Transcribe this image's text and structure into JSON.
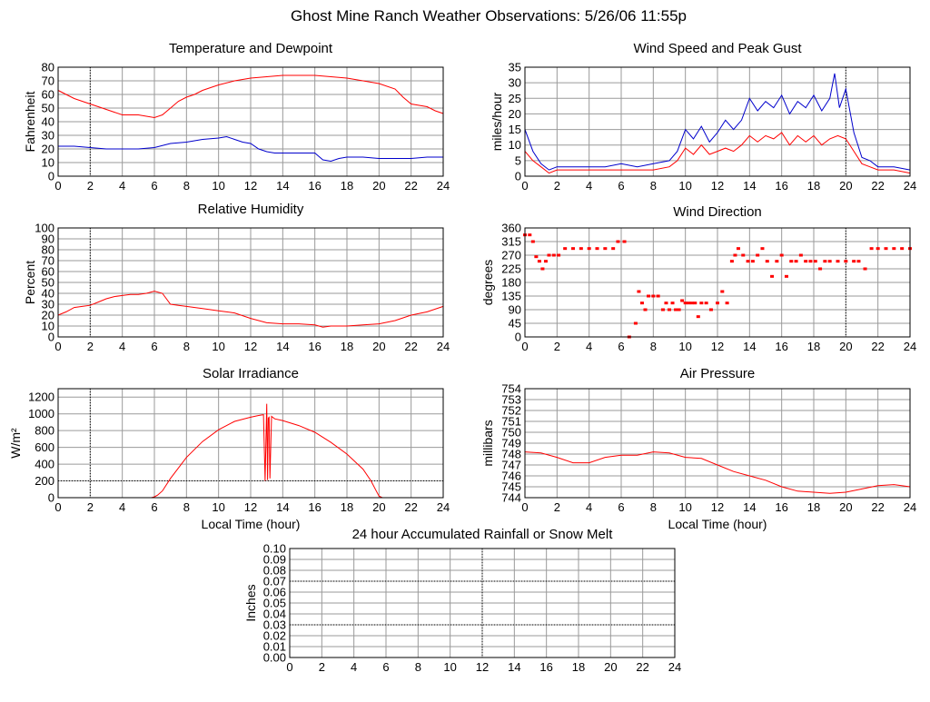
{
  "page": {
    "title": "Ghost Mine Ranch Weather Observations: 5/26/06 11:55p"
  },
  "colors": {
    "grid": "#9a9a9a",
    "dotted_grid": "#000000",
    "frame": "#000000",
    "red": "#ff0000",
    "blue": "#0000cc"
  },
  "chart_data": [
    {
      "id": "temp",
      "type": "line",
      "title": "Temperature and Dewpoint",
      "ylabel": "Fahrenheit",
      "xlabel": "",
      "xlim": [
        0,
        24
      ],
      "ylim": [
        0,
        80
      ],
      "xticks": [
        0,
        2,
        4,
        6,
        8,
        10,
        12,
        14,
        16,
        18,
        20,
        22,
        24
      ],
      "yticks": [
        0,
        10,
        20,
        30,
        40,
        50,
        60,
        70,
        80
      ],
      "dotted_x": [
        2
      ],
      "dotted_y": [],
      "series": [
        {
          "color": "#ff0000",
          "x": [
            0,
            0.5,
            1,
            1.5,
            2,
            2.5,
            3,
            3.5,
            4,
            4.5,
            5,
            5.5,
            6,
            6.5,
            7,
            7.5,
            8,
            8.5,
            9,
            9.5,
            10,
            11,
            12,
            13,
            14,
            15,
            16,
            17,
            18,
            19,
            20,
            21,
            21.5,
            22,
            22.5,
            23,
            23.5,
            24
          ],
          "y": [
            63,
            60,
            57,
            55,
            53,
            51,
            49,
            47,
            45,
            45,
            45,
            44,
            43,
            45,
            50,
            55,
            58,
            60,
            63,
            65,
            67,
            70,
            72,
            73,
            74,
            74,
            74,
            73,
            72,
            70,
            68,
            64,
            58,
            53,
            52,
            51,
            48,
            46
          ]
        },
        {
          "color": "#0000cc",
          "x": [
            0,
            1,
            2,
            3,
            4,
            5,
            6,
            7,
            8,
            9,
            10,
            10.5,
            11,
            11.5,
            12,
            12.5,
            13,
            13.5,
            14,
            15,
            16,
            16.5,
            17,
            17.5,
            18,
            19,
            20,
            21,
            22,
            23,
            24
          ],
          "y": [
            22,
            22,
            21,
            20,
            20,
            20,
            21,
            24,
            25,
            27,
            28,
            29,
            27,
            25,
            24,
            20,
            18,
            17,
            17,
            17,
            17,
            12,
            11,
            13,
            14,
            14,
            13,
            13,
            13,
            14,
            14
          ]
        }
      ]
    },
    {
      "id": "wind",
      "type": "line",
      "title": "Wind Speed and Peak Gust",
      "ylabel": "miles/hour",
      "xlabel": "",
      "xlim": [
        0,
        24
      ],
      "ylim": [
        0,
        35
      ],
      "xticks": [
        0,
        2,
        4,
        6,
        8,
        10,
        12,
        14,
        16,
        18,
        20,
        22,
        24
      ],
      "yticks": [
        0,
        5,
        10,
        15,
        20,
        25,
        30,
        35
      ],
      "dotted_x": [
        20
      ],
      "dotted_y": [],
      "series": [
        {
          "color": "#0000cc",
          "x": [
            0,
            0.5,
            1,
            1.5,
            2,
            3,
            4,
            5,
            6,
            7,
            8,
            9,
            9.5,
            10,
            10.5,
            11,
            11.5,
            12,
            12.5,
            13,
            13.5,
            14,
            14.5,
            15,
            15.5,
            16,
            16.5,
            17,
            17.5,
            18,
            18.5,
            19,
            19.3,
            19.6,
            20,
            20.5,
            21,
            21.5,
            22,
            23,
            24
          ],
          "y": [
            15,
            8,
            4,
            2,
            3,
            3,
            3,
            3,
            4,
            3,
            4,
            5,
            8,
            15,
            12,
            16,
            11,
            14,
            18,
            15,
            18,
            25,
            21,
            24,
            22,
            26,
            20,
            24,
            22,
            26,
            21,
            25,
            33,
            22,
            28,
            14,
            6,
            5,
            3,
            3,
            2
          ]
        },
        {
          "color": "#ff0000",
          "x": [
            0,
            0.5,
            1,
            1.5,
            2,
            3,
            4,
            5,
            6,
            7,
            8,
            9,
            9.5,
            10,
            10.5,
            11,
            11.5,
            12,
            12.5,
            13,
            13.5,
            14,
            14.5,
            15,
            15.5,
            16,
            16.5,
            17,
            17.5,
            18,
            18.5,
            19,
            19.5,
            20,
            20.5,
            21,
            21.5,
            22,
            23,
            24
          ],
          "y": [
            8,
            5,
            3,
            1,
            2,
            2,
            2,
            2,
            2,
            2,
            2,
            3,
            5,
            9,
            7,
            10,
            7,
            8,
            9,
            8,
            10,
            13,
            11,
            13,
            12,
            14,
            10,
            13,
            11,
            13,
            10,
            12,
            13,
            12,
            8,
            4,
            3,
            2,
            2,
            1
          ]
        }
      ]
    },
    {
      "id": "humidity",
      "type": "line",
      "title": "Relative Humidity",
      "ylabel": "Percent",
      "xlabel": "",
      "xlim": [
        0,
        24
      ],
      "ylim": [
        0,
        100
      ],
      "xticks": [
        0,
        2,
        4,
        6,
        8,
        10,
        12,
        14,
        16,
        18,
        20,
        22,
        24
      ],
      "yticks": [
        0,
        10,
        20,
        30,
        40,
        50,
        60,
        70,
        80,
        90,
        100
      ],
      "dotted_x": [
        2
      ],
      "dotted_y": [],
      "series": [
        {
          "color": "#ff0000",
          "x": [
            0,
            0.5,
            1,
            1.5,
            2,
            2.5,
            3,
            3.5,
            4,
            4.5,
            5,
            5.5,
            6,
            6.5,
            7,
            7.5,
            8,
            9,
            10,
            11,
            12,
            13,
            14,
            15,
            16,
            16.5,
            17,
            18,
            19,
            20,
            21,
            22,
            23,
            24
          ],
          "y": [
            20,
            23,
            27,
            28,
            29,
            32,
            35,
            37,
            38,
            39,
            39,
            40,
            42,
            40,
            30,
            29,
            28,
            26,
            24,
            22,
            17,
            13,
            12,
            12,
            11,
            9,
            10,
            10,
            11,
            12,
            15,
            20,
            23,
            28
          ]
        }
      ]
    },
    {
      "id": "direction",
      "type": "scatter",
      "title": "Wind Direction",
      "ylabel": "degrees",
      "xlabel": "",
      "xlim": [
        0,
        24
      ],
      "ylim": [
        0,
        360
      ],
      "xticks": [
        0,
        2,
        4,
        6,
        8,
        10,
        12,
        14,
        16,
        18,
        20,
        22,
        24
      ],
      "yticks": [
        0,
        45,
        90,
        135,
        180,
        225,
        270,
        315,
        360
      ],
      "dotted_x": [
        20
      ],
      "dotted_y": [],
      "series": [
        {
          "color": "#ff0000",
          "x": [
            0,
            0.3,
            0.5,
            0.7,
            0.9,
            1.1,
            1.3,
            1.5,
            1.8,
            2.1,
            2.5,
            3,
            3.5,
            4,
            4.5,
            5,
            5.5,
            5.8,
            6.2,
            6.5,
            6.9,
            7.1,
            7.3,
            7.5,
            7.7,
            8,
            8.3,
            8.6,
            8.8,
            9,
            9.2,
            9.4,
            9.6,
            9.8,
            10,
            10.2,
            10.4,
            10.6,
            10.8,
            11,
            11.3,
            11.6,
            12,
            12.3,
            12.6,
            12.9,
            13.1,
            13.3,
            13.6,
            13.9,
            14.2,
            14.5,
            14.8,
            15.1,
            15.4,
            15.7,
            16,
            16.3,
            16.6,
            16.9,
            17.2,
            17.5,
            17.8,
            18.1,
            18.4,
            18.7,
            19,
            19.5,
            20,
            20.5,
            20.8,
            21.2,
            21.6,
            22,
            22.5,
            23,
            23.5,
            24
          ],
          "y": [
            337,
            337,
            315,
            265,
            250,
            225,
            250,
            270,
            270,
            270,
            292,
            292,
            292,
            292,
            292,
            292,
            292,
            315,
            315,
            0,
            45,
            150,
            112,
            90,
            135,
            135,
            135,
            90,
            112,
            90,
            112,
            90,
            90,
            120,
            112,
            112,
            112,
            112,
            67,
            112,
            112,
            90,
            112,
            150,
            112,
            250,
            270,
            292,
            270,
            250,
            250,
            270,
            292,
            250,
            200,
            250,
            270,
            200,
            250,
            250,
            270,
            250,
            250,
            250,
            225,
            250,
            250,
            250,
            250,
            250,
            250,
            225,
            292,
            292,
            292,
            292,
            292,
            292
          ]
        }
      ]
    },
    {
      "id": "solar",
      "type": "line",
      "title": "Solar Irradiance",
      "ylabel": "W/m²",
      "xlabel": "Local Time (hour)",
      "xlim": [
        0,
        24
      ],
      "ylim": [
        0,
        1300
      ],
      "xticks": [
        0,
        2,
        4,
        6,
        8,
        10,
        12,
        14,
        16,
        18,
        20,
        22,
        24
      ],
      "yticks": [
        0,
        200,
        400,
        600,
        800,
        1000,
        1200
      ],
      "dotted_x": [
        2
      ],
      "dotted_y": [
        200
      ],
      "series": [
        {
          "color": "#ff0000",
          "x": [
            0,
            5,
            5.8,
            6,
            6.2,
            6.5,
            7,
            8,
            9,
            10,
            11,
            12,
            12.5,
            12.8,
            12.9,
            13.0,
            13.05,
            13.1,
            13.15,
            13.2,
            13.3,
            13.5,
            14,
            15,
            16,
            17,
            18,
            19,
            19.5,
            19.8,
            20,
            20.2,
            21,
            24
          ],
          "y": [
            0,
            0,
            0,
            10,
            30,
            80,
            230,
            480,
            670,
            810,
            910,
            960,
            980,
            990,
            200,
            1120,
            210,
            950,
            960,
            230,
            970,
            940,
            920,
            860,
            780,
            660,
            520,
            340,
            200,
            90,
            20,
            0,
            0,
            0
          ]
        }
      ]
    },
    {
      "id": "pressure",
      "type": "line",
      "title": "Air Pressure",
      "ylabel": "millibars",
      "xlabel": "Local Time (hour)",
      "xlim": [
        0,
        24
      ],
      "ylim": [
        744,
        754
      ],
      "xticks": [
        0,
        2,
        4,
        6,
        8,
        10,
        12,
        14,
        16,
        18,
        20,
        22,
        24
      ],
      "yticks": [
        744,
        745,
        746,
        747,
        748,
        749,
        750,
        751,
        752,
        753,
        754
      ],
      "dotted_x": [],
      "dotted_y": [],
      "series": [
        {
          "color": "#ff0000",
          "x": [
            0,
            1,
            2,
            3,
            4,
            5,
            6,
            7,
            8,
            9,
            10,
            11,
            12,
            13,
            14,
            15,
            16,
            17,
            18,
            19,
            20,
            21,
            22,
            23,
            24
          ],
          "y": [
            748.2,
            748.1,
            747.7,
            747.2,
            747.2,
            747.7,
            747.9,
            747.9,
            748.2,
            748.1,
            747.7,
            747.6,
            747.0,
            746.4,
            746.0,
            745.6,
            745.0,
            744.6,
            744.5,
            744.4,
            744.5,
            744.8,
            745.1,
            745.2,
            745.0
          ]
        }
      ]
    },
    {
      "id": "rain",
      "type": "line",
      "title": "24 hour Accumulated Rainfall or Snow Melt",
      "ylabel": "Inches",
      "xlabel": "",
      "xlim": [
        0,
        24
      ],
      "ylim": [
        0,
        0.1
      ],
      "xticks": [
        0,
        2,
        4,
        6,
        8,
        10,
        12,
        14,
        16,
        18,
        20,
        22,
        24
      ],
      "yticks": [
        0.0,
        0.01,
        0.02,
        0.03,
        0.04,
        0.05,
        0.06,
        0.07,
        0.08,
        0.09,
        0.1
      ],
      "ytick_labels": [
        "0.00",
        "0.01",
        "0.02",
        "0.03",
        "0.04",
        "0.05",
        "0.06",
        "0.07",
        "0.08",
        "0.09",
        "0.10"
      ],
      "dotted_x": [
        12
      ],
      "dotted_y": [
        0.03,
        0.07
      ],
      "series": [
        {
          "color": "#ff0000",
          "x": [
            0,
            24
          ],
          "y": [
            0,
            0
          ]
        }
      ]
    }
  ]
}
